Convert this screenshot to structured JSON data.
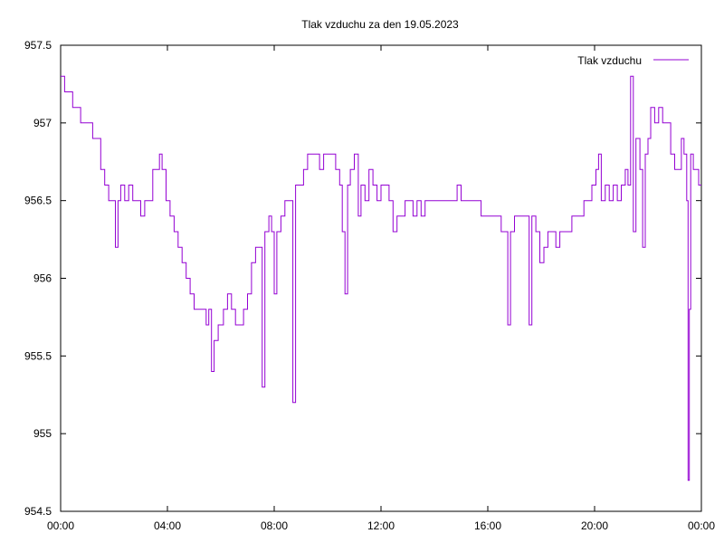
{
  "chart_data": {
    "type": "line",
    "title": "Tlak vzduchu za den 19.05.2023",
    "xlabel": "",
    "ylabel": "",
    "x_ticks": [
      "00:00",
      "04:00",
      "08:00",
      "12:00",
      "16:00",
      "20:00",
      "00:00"
    ],
    "y_ticks": [
      "954.5",
      "955",
      "955.5",
      "956",
      "956.5",
      "957",
      "957.5"
    ],
    "xlim": [
      0,
      24
    ],
    "ylim": [
      954.5,
      957.5
    ],
    "grid": false,
    "legend_position": "top-right",
    "series": [
      {
        "name": "Tlak vzduchu",
        "color": "#9400d3",
        "points": [
          [
            0.0,
            957.3
          ],
          [
            0.15,
            957.2
          ],
          [
            0.3,
            957.2
          ],
          [
            0.45,
            957.1
          ],
          [
            0.6,
            957.1
          ],
          [
            0.75,
            957.0
          ],
          [
            0.9,
            957.0
          ],
          [
            1.05,
            957.0
          ],
          [
            1.2,
            956.9
          ],
          [
            1.35,
            956.9
          ],
          [
            1.5,
            956.7
          ],
          [
            1.65,
            956.6
          ],
          [
            1.8,
            956.5
          ],
          [
            1.95,
            956.5
          ],
          [
            2.05,
            956.2
          ],
          [
            2.15,
            956.5
          ],
          [
            2.25,
            956.6
          ],
          [
            2.4,
            956.5
          ],
          [
            2.55,
            956.6
          ],
          [
            2.7,
            956.5
          ],
          [
            2.85,
            956.5
          ],
          [
            3.0,
            956.4
          ],
          [
            3.15,
            956.5
          ],
          [
            3.3,
            956.5
          ],
          [
            3.45,
            956.7
          ],
          [
            3.6,
            956.7
          ],
          [
            3.7,
            956.8
          ],
          [
            3.8,
            956.7
          ],
          [
            3.95,
            956.5
          ],
          [
            4.1,
            956.4
          ],
          [
            4.25,
            956.3
          ],
          [
            4.4,
            956.2
          ],
          [
            4.55,
            956.1
          ],
          [
            4.7,
            956.0
          ],
          [
            4.85,
            955.9
          ],
          [
            5.0,
            955.8
          ],
          [
            5.15,
            955.8
          ],
          [
            5.3,
            955.8
          ],
          [
            5.45,
            955.7
          ],
          [
            5.55,
            955.8
          ],
          [
            5.65,
            955.4
          ],
          [
            5.75,
            955.6
          ],
          [
            5.9,
            955.7
          ],
          [
            6.0,
            955.7
          ],
          [
            6.1,
            955.8
          ],
          [
            6.25,
            955.9
          ],
          [
            6.4,
            955.8
          ],
          [
            6.55,
            955.7
          ],
          [
            6.7,
            955.7
          ],
          [
            6.85,
            955.8
          ],
          [
            7.0,
            955.9
          ],
          [
            7.15,
            956.1
          ],
          [
            7.3,
            956.2
          ],
          [
            7.45,
            956.2
          ],
          [
            7.55,
            955.3
          ],
          [
            7.65,
            956.3
          ],
          [
            7.8,
            956.4
          ],
          [
            7.9,
            956.3
          ],
          [
            8.0,
            955.9
          ],
          [
            8.1,
            956.3
          ],
          [
            8.25,
            956.4
          ],
          [
            8.4,
            956.5
          ],
          [
            8.55,
            956.5
          ],
          [
            8.7,
            955.2
          ],
          [
            8.8,
            956.6
          ],
          [
            8.95,
            956.6
          ],
          [
            9.1,
            956.7
          ],
          [
            9.25,
            956.8
          ],
          [
            9.4,
            956.8
          ],
          [
            9.55,
            956.8
          ],
          [
            9.7,
            956.7
          ],
          [
            9.85,
            956.8
          ],
          [
            10.0,
            956.8
          ],
          [
            10.15,
            956.8
          ],
          [
            10.3,
            956.7
          ],
          [
            10.45,
            956.6
          ],
          [
            10.55,
            956.3
          ],
          [
            10.65,
            955.9
          ],
          [
            10.75,
            956.6
          ],
          [
            10.85,
            956.7
          ],
          [
            11.0,
            956.8
          ],
          [
            11.15,
            956.4
          ],
          [
            11.25,
            956.6
          ],
          [
            11.4,
            956.5
          ],
          [
            11.55,
            956.7
          ],
          [
            11.7,
            956.6
          ],
          [
            11.85,
            956.5
          ],
          [
            12.0,
            956.6
          ],
          [
            12.15,
            956.6
          ],
          [
            12.3,
            956.5
          ],
          [
            12.45,
            956.3
          ],
          [
            12.6,
            956.4
          ],
          [
            12.75,
            956.4
          ],
          [
            12.9,
            956.5
          ],
          [
            13.05,
            956.5
          ],
          [
            13.2,
            956.4
          ],
          [
            13.35,
            956.5
          ],
          [
            13.5,
            956.4
          ],
          [
            13.65,
            956.5
          ],
          [
            13.8,
            956.5
          ],
          [
            13.95,
            956.5
          ],
          [
            14.1,
            956.5
          ],
          [
            14.25,
            956.5
          ],
          [
            14.4,
            956.5
          ],
          [
            14.55,
            956.5
          ],
          [
            14.7,
            956.5
          ],
          [
            14.85,
            956.6
          ],
          [
            15.0,
            956.5
          ],
          [
            15.15,
            956.5
          ],
          [
            15.3,
            956.5
          ],
          [
            15.45,
            956.5
          ],
          [
            15.6,
            956.5
          ],
          [
            15.75,
            956.4
          ],
          [
            15.9,
            956.4
          ],
          [
            16.05,
            956.4
          ],
          [
            16.2,
            956.4
          ],
          [
            16.35,
            956.4
          ],
          [
            16.5,
            956.3
          ],
          [
            16.65,
            956.3
          ],
          [
            16.75,
            955.7
          ],
          [
            16.85,
            956.3
          ],
          [
            17.0,
            956.4
          ],
          [
            17.15,
            956.4
          ],
          [
            17.3,
            956.4
          ],
          [
            17.45,
            956.4
          ],
          [
            17.55,
            955.7
          ],
          [
            17.65,
            956.4
          ],
          [
            17.8,
            956.3
          ],
          [
            17.95,
            956.1
          ],
          [
            18.1,
            956.2
          ],
          [
            18.25,
            956.3
          ],
          [
            18.4,
            956.3
          ],
          [
            18.55,
            956.2
          ],
          [
            18.7,
            956.3
          ],
          [
            18.85,
            956.3
          ],
          [
            19.0,
            956.3
          ],
          [
            19.15,
            956.4
          ],
          [
            19.3,
            956.4
          ],
          [
            19.45,
            956.4
          ],
          [
            19.6,
            956.5
          ],
          [
            19.75,
            956.5
          ],
          [
            19.9,
            956.6
          ],
          [
            20.05,
            956.7
          ],
          [
            20.15,
            956.8
          ],
          [
            20.25,
            956.5
          ],
          [
            20.4,
            956.6
          ],
          [
            20.55,
            956.5
          ],
          [
            20.7,
            956.6
          ],
          [
            20.85,
            956.5
          ],
          [
            21.0,
            956.6
          ],
          [
            21.15,
            956.7
          ],
          [
            21.25,
            956.6
          ],
          [
            21.35,
            957.3
          ],
          [
            21.45,
            956.3
          ],
          [
            21.55,
            956.9
          ],
          [
            21.7,
            956.7
          ],
          [
            21.8,
            956.2
          ],
          [
            21.9,
            956.8
          ],
          [
            22.0,
            956.9
          ],
          [
            22.1,
            957.1
          ],
          [
            22.25,
            957.0
          ],
          [
            22.4,
            957.1
          ],
          [
            22.55,
            957.0
          ],
          [
            22.7,
            957.0
          ],
          [
            22.85,
            956.8
          ],
          [
            23.0,
            956.7
          ],
          [
            23.15,
            956.7
          ],
          [
            23.25,
            956.9
          ],
          [
            23.35,
            956.8
          ],
          [
            23.45,
            956.5
          ],
          [
            23.5,
            954.7
          ],
          [
            23.55,
            955.8
          ],
          [
            23.6,
            956.8
          ],
          [
            23.7,
            956.7
          ],
          [
            23.8,
            956.7
          ],
          [
            23.9,
            956.6
          ],
          [
            24.0,
            956.6
          ]
        ]
      }
    ]
  }
}
